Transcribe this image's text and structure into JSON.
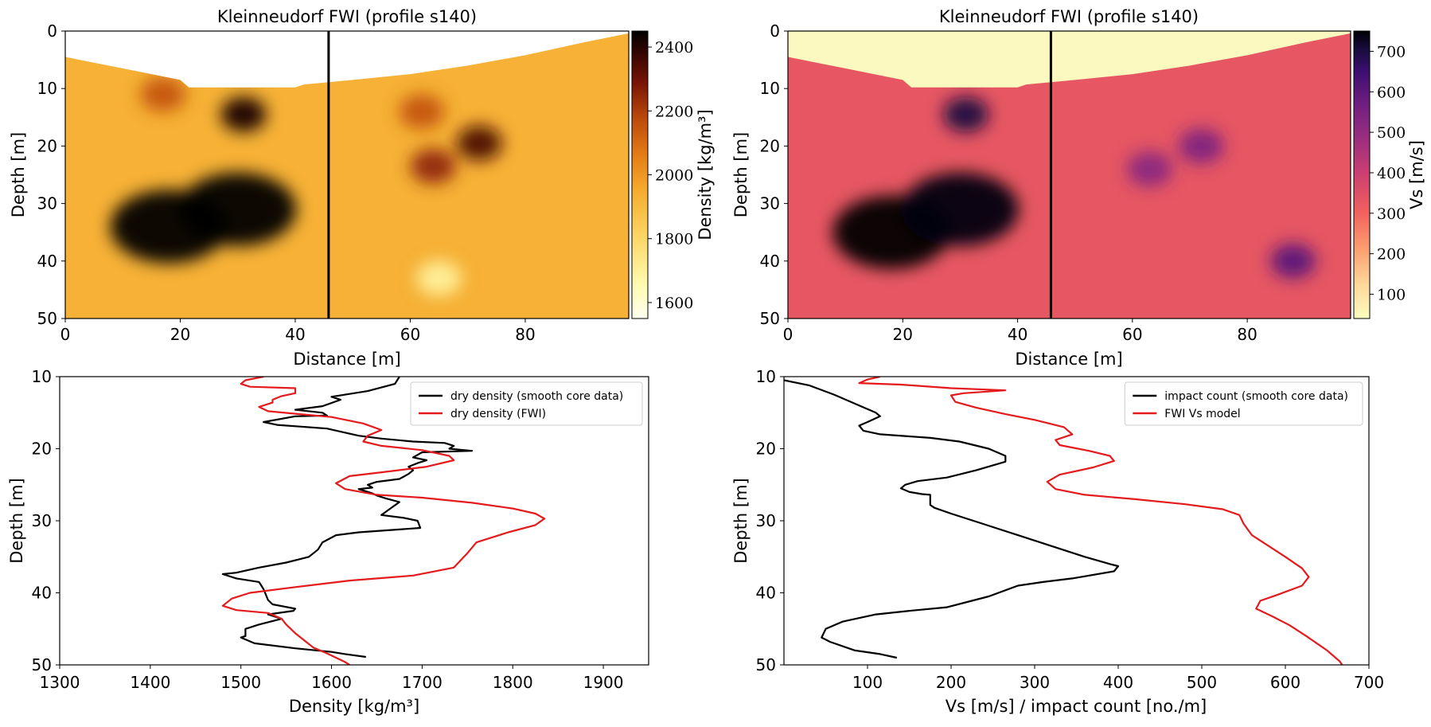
{
  "chart_data": [
    {
      "id": "density-section",
      "type": "heatmap",
      "title": "Kleinneudorf FWI (profile s140)",
      "xlabel": "Distance [m]",
      "ylabel": "Depth [m]",
      "xlim": [
        0,
        98
      ],
      "ylim": [
        50,
        0
      ],
      "xticks": [
        0,
        20,
        40,
        60,
        80
      ],
      "yticks": [
        0,
        10,
        20,
        30,
        40,
        50
      ],
      "colormap": "afmhot_r",
      "colorbar_label": "Density [kg/m³]",
      "colorbar_ticks": [
        2400,
        2200,
        2000,
        1800,
        1600
      ],
      "colorbar_range": [
        1550,
        2450
      ],
      "profile_line_x": 45.8,
      "surface": [
        [
          0,
          4.5
        ],
        [
          5,
          5.5
        ],
        [
          10,
          6.5
        ],
        [
          15,
          7.5
        ],
        [
          20,
          8.5
        ],
        [
          21.5,
          9.8
        ],
        [
          40,
          9.8
        ],
        [
          41.5,
          9.3
        ],
        [
          50,
          8.5
        ],
        [
          60,
          7.5
        ],
        [
          70,
          6
        ],
        [
          80,
          4.2
        ],
        [
          90,
          2
        ],
        [
          98,
          0.4
        ]
      ],
      "anomalies": [
        {
          "x": 18,
          "z": 34,
          "value": 2480
        },
        {
          "x": 30,
          "z": 31,
          "value": 2450
        },
        {
          "x": 31,
          "z": 14.5,
          "value": 2420
        },
        {
          "x": 72,
          "z": 19.5,
          "value": 2350
        },
        {
          "x": 64,
          "z": 23.5,
          "value": 2250
        },
        {
          "x": 17,
          "z": 11,
          "value": 2150
        },
        {
          "x": 62,
          "z": 14,
          "value": 2150
        },
        {
          "x": 65,
          "z": 43,
          "value": 1700
        }
      ]
    },
    {
      "id": "vs-section",
      "type": "heatmap",
      "title": "Kleinneudorf FWI (profile s140)",
      "xlabel": "Distance [m]",
      "ylabel": "Depth [m]",
      "xlim": [
        0,
        98
      ],
      "ylim": [
        50,
        0
      ],
      "xticks": [
        0,
        20,
        40,
        60,
        80
      ],
      "yticks": [
        0,
        10,
        20,
        30,
        40,
        50
      ],
      "colormap": "magma_r",
      "colorbar_label": "Vs [m/s]",
      "colorbar_ticks": [
        700,
        600,
        500,
        400,
        300,
        200,
        100
      ],
      "colorbar_range": [
        40,
        750
      ],
      "profile_line_x": 45.8,
      "surface": [
        [
          0,
          4.5
        ],
        [
          5,
          5.5
        ],
        [
          10,
          6.5
        ],
        [
          15,
          7.5
        ],
        [
          20,
          8.5
        ],
        [
          21.5,
          9.8
        ],
        [
          40,
          9.8
        ],
        [
          41.5,
          9.3
        ],
        [
          50,
          8.5
        ],
        [
          60,
          7.5
        ],
        [
          70,
          6
        ],
        [
          80,
          4.2
        ],
        [
          90,
          2
        ],
        [
          98,
          0.4
        ]
      ],
      "anomalies": [
        {
          "x": 18,
          "z": 35,
          "value": 760
        },
        {
          "x": 30,
          "z": 31,
          "value": 740
        },
        {
          "x": 31,
          "z": 14.5,
          "value": 700
        },
        {
          "x": 72,
          "z": 20,
          "value": 540
        },
        {
          "x": 63,
          "z": 24,
          "value": 520
        },
        {
          "x": 88,
          "z": 40,
          "value": 600
        }
      ]
    },
    {
      "id": "density-profile",
      "type": "line",
      "xlabel": "Density [kg/m³]",
      "ylabel": "Depth [m]",
      "xlim": [
        1300,
        1950
      ],
      "ylim": [
        50,
        10
      ],
      "xticks": [
        1300,
        1400,
        1500,
        1600,
        1700,
        1800,
        1900
      ],
      "yticks": [
        10,
        20,
        30,
        40,
        50
      ],
      "legend_position": "upper right",
      "series": [
        {
          "name": "dry density (smooth core data)",
          "color": "#000000",
          "points": [
            [
              1675,
              10
            ],
            [
              1670,
              11
            ],
            [
              1640,
              12
            ],
            [
              1600,
              12.8
            ],
            [
              1610,
              13.2
            ],
            [
              1590,
              14.1
            ],
            [
              1560,
              14.6
            ],
            [
              1590,
              15
            ],
            [
              1595,
              15.4
            ],
            [
              1560,
              15.5
            ],
            [
              1525,
              16.3
            ],
            [
              1540,
              16.7
            ],
            [
              1595,
              17.2
            ],
            [
              1630,
              18.2
            ],
            [
              1655,
              18.6
            ],
            [
              1690,
              19
            ],
            [
              1725,
              19.2
            ],
            [
              1735,
              19.6
            ],
            [
              1730,
              20
            ],
            [
              1755,
              20.3
            ],
            [
              1700,
              20.5
            ],
            [
              1690,
              21.2
            ],
            [
              1705,
              21.6
            ],
            [
              1695,
              22
            ],
            [
              1685,
              22.5
            ],
            [
              1690,
              23
            ],
            [
              1685,
              23.5
            ],
            [
              1675,
              24.2
            ],
            [
              1650,
              24.6
            ],
            [
              1640,
              25
            ],
            [
              1645,
              25.4
            ],
            [
              1630,
              25.6
            ],
            [
              1645,
              26.2
            ],
            [
              1650,
              26.5
            ],
            [
              1660,
              26.9
            ],
            [
              1675,
              27.4
            ],
            [
              1665,
              28.3
            ],
            [
              1655,
              29.2
            ],
            [
              1680,
              29.6
            ],
            [
              1695,
              30
            ],
            [
              1698,
              31
            ],
            [
              1675,
              31.2
            ],
            [
              1630,
              31.6
            ],
            [
              1605,
              32
            ],
            [
              1590,
              33
            ],
            [
              1585,
              34
            ],
            [
              1575,
              35
            ],
            [
              1550,
              35.8
            ],
            [
              1520,
              36.5
            ],
            [
              1495,
              37.2
            ],
            [
              1480,
              37.4
            ],
            [
              1495,
              38
            ],
            [
              1520,
              38.5
            ],
            [
              1525,
              39.5
            ],
            [
              1530,
              41
            ],
            [
              1535,
              41.6
            ],
            [
              1560,
              42.2
            ],
            [
              1558,
              42.5
            ],
            [
              1530,
              43
            ],
            [
              1545,
              43.6
            ],
            [
              1520,
              44.4
            ],
            [
              1505,
              45
            ],
            [
              1505,
              46
            ],
            [
              1500,
              46.2
            ],
            [
              1515,
              47
            ],
            [
              1560,
              47.7
            ],
            [
              1600,
              48.2
            ],
            [
              1615,
              48.5
            ],
            [
              1638,
              48.9
            ]
          ]
        },
        {
          "name": "dry density (FWI)",
          "color": "#e41a1c",
          "points": [
            [
              1525,
              10
            ],
            [
              1505,
              10.5
            ],
            [
              1500,
              11
            ],
            [
              1510,
              11.4
            ],
            [
              1560,
              11.6
            ],
            [
              1560,
              12.3
            ],
            [
              1545,
              12.7
            ],
            [
              1535,
              13.2
            ],
            [
              1535,
              13.6
            ],
            [
              1520,
              14.2
            ],
            [
              1530,
              14.8
            ],
            [
              1565,
              15.2
            ],
            [
              1600,
              15.6
            ],
            [
              1635,
              16.5
            ],
            [
              1655,
              17.4
            ],
            [
              1640,
              18.2
            ],
            [
              1635,
              19
            ],
            [
              1655,
              19.6
            ],
            [
              1700,
              20.2
            ],
            [
              1730,
              21
            ],
            [
              1735,
              21.6
            ],
            [
              1705,
              22.5
            ],
            [
              1660,
              23.2
            ],
            [
              1620,
              23.8
            ],
            [
              1605,
              24.8
            ],
            [
              1615,
              25.6
            ],
            [
              1650,
              26.4
            ],
            [
              1700,
              26.8
            ],
            [
              1755,
              27.5
            ],
            [
              1800,
              28.3
            ],
            [
              1825,
              29
            ],
            [
              1835,
              29.7
            ],
            [
              1825,
              30.6
            ],
            [
              1795,
              31.6
            ],
            [
              1760,
              33
            ],
            [
              1750,
              34.5
            ],
            [
              1735,
              36.5
            ],
            [
              1690,
              37.6
            ],
            [
              1620,
              38.3
            ],
            [
              1560,
              39.2
            ],
            [
              1510,
              40
            ],
            [
              1490,
              40.8
            ],
            [
              1480,
              41.8
            ],
            [
              1495,
              42.4
            ],
            [
              1530,
              42.8
            ],
            [
              1545,
              43.6
            ],
            [
              1550,
              44.4
            ],
            [
              1560,
              45.6
            ],
            [
              1570,
              46.6
            ],
            [
              1580,
              47.6
            ],
            [
              1595,
              48.4
            ],
            [
              1615,
              49.6
            ],
            [
              1620,
              50
            ]
          ]
        }
      ]
    },
    {
      "id": "vs-profile",
      "type": "line",
      "xlabel": "Vs [m/s] / impact count [no./m]",
      "ylabel": "Depth [m]",
      "xlim": [
        0,
        700
      ],
      "ylim": [
        50,
        10
      ],
      "xticks": [
        100,
        200,
        300,
        400,
        500,
        600,
        700
      ],
      "yticks": [
        10,
        20,
        30,
        40,
        50
      ],
      "legend_position": "upper right",
      "series": [
        {
          "name": "impact count (smooth core data)",
          "color": "#000000",
          "points": [
            [
              0,
              10.5
            ],
            [
              30,
              11.2
            ],
            [
              60,
              12.5
            ],
            [
              90,
              14
            ],
            [
              110,
              15
            ],
            [
              115,
              15.5
            ],
            [
              100,
              16.3
            ],
            [
              90,
              16.8
            ],
            [
              95,
              17.5
            ],
            [
              115,
              18
            ],
            [
              175,
              18.5
            ],
            [
              210,
              19
            ],
            [
              245,
              20
            ],
            [
              265,
              21
            ],
            [
              265,
              21.8
            ],
            [
              230,
              23
            ],
            [
              195,
              24
            ],
            [
              160,
              24.5
            ],
            [
              145,
              25
            ],
            [
              140,
              25.5
            ],
            [
              150,
              26
            ],
            [
              165,
              26.3
            ],
            [
              175,
              26.4
            ],
            [
              175,
              27.8
            ],
            [
              180,
              28.2
            ],
            [
              200,
              29
            ],
            [
              240,
              30.5
            ],
            [
              280,
              32
            ],
            [
              320,
              33.5
            ],
            [
              360,
              35
            ],
            [
              390,
              36
            ],
            [
              400,
              36.3
            ],
            [
              395,
              37
            ],
            [
              345,
              38
            ],
            [
              310,
              38.5
            ],
            [
              280,
              39
            ],
            [
              245,
              40.5
            ],
            [
              195,
              42
            ],
            [
              150,
              42.5
            ],
            [
              110,
              43
            ],
            [
              70,
              44
            ],
            [
              50,
              45
            ],
            [
              45,
              46.2
            ],
            [
              55,
              46.8
            ],
            [
              85,
              48
            ],
            [
              115,
              48.5
            ],
            [
              135,
              49
            ]
          ]
        },
        {
          "name": "FWI Vs model",
          "color": "#e41a1c",
          "points": [
            [
              115,
              10
            ],
            [
              100,
              10.4
            ],
            [
              90,
              10.9
            ],
            [
              140,
              11.1
            ],
            [
              200,
              11.6
            ],
            [
              265,
              11.9
            ],
            [
              215,
              12.3
            ],
            [
              200,
              12.6
            ],
            [
              205,
              13.5
            ],
            [
              230,
              14.3
            ],
            [
              265,
              15.2
            ],
            [
              300,
              16
            ],
            [
              335,
              17
            ],
            [
              345,
              18
            ],
            [
              325,
              18.8
            ],
            [
              330,
              19.5
            ],
            [
              365,
              20.3
            ],
            [
              390,
              21
            ],
            [
              395,
              21.7
            ],
            [
              370,
              22.6
            ],
            [
              330,
              23.6
            ],
            [
              315,
              24.6
            ],
            [
              325,
              25.6
            ],
            [
              360,
              26.4
            ],
            [
              420,
              27
            ],
            [
              480,
              27.7
            ],
            [
              525,
              28.4
            ],
            [
              545,
              29.2
            ],
            [
              550,
              30.4
            ],
            [
              560,
              32
            ],
            [
              580,
              33.5
            ],
            [
              600,
              35
            ],
            [
              620,
              36.6
            ],
            [
              628,
              37.8
            ],
            [
              620,
              39
            ],
            [
              590,
              40.3
            ],
            [
              570,
              41.1
            ],
            [
              565,
              42.2
            ],
            [
              585,
              43.3
            ],
            [
              605,
              44.5
            ],
            [
              625,
              46
            ],
            [
              650,
              48
            ],
            [
              665,
              49.5
            ],
            [
              668,
              50
            ]
          ]
        }
      ]
    }
  ]
}
